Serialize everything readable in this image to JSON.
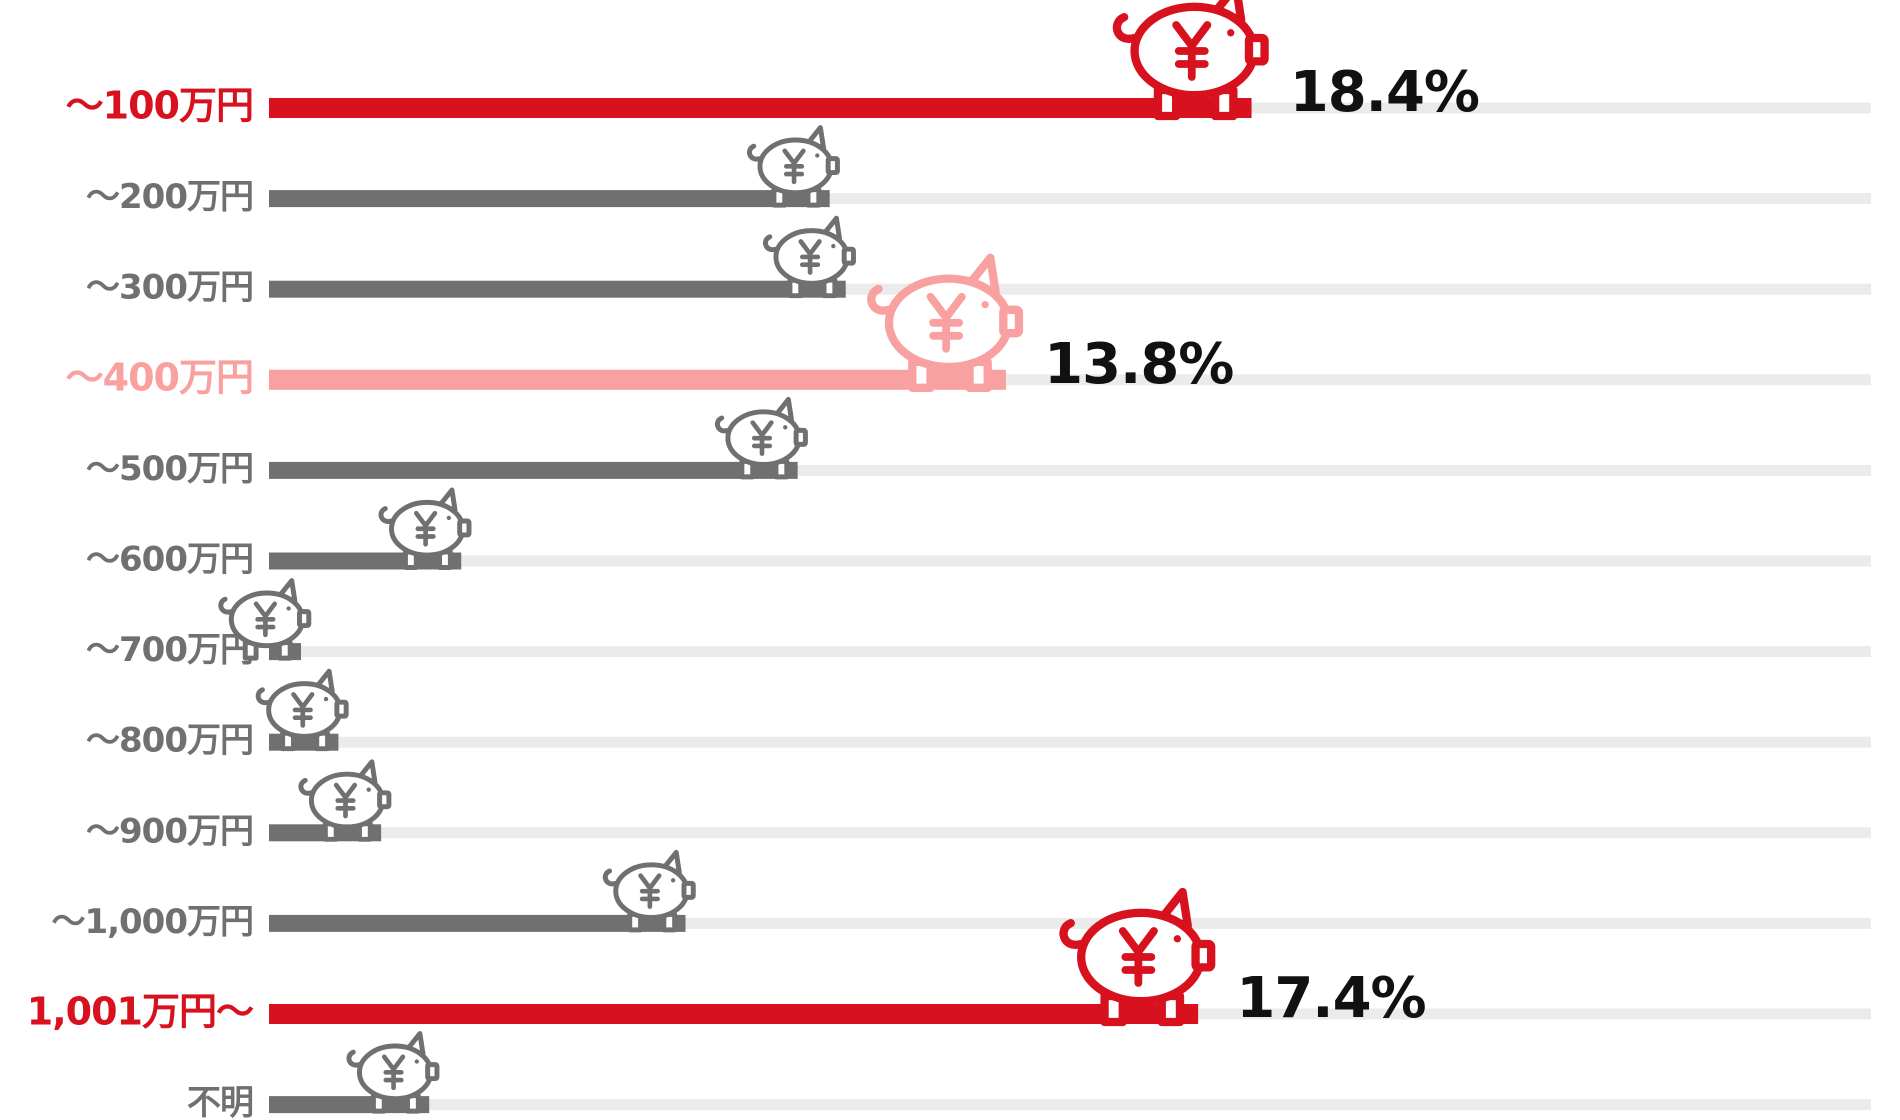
{
  "chart_data": {
    "type": "bar",
    "orientation": "horizontal",
    "categories": [
      "〜100万円",
      "〜200万円",
      "〜300万円",
      "〜400万円",
      "〜500万円",
      "〜600万円",
      "〜700万円",
      "〜800万円",
      "〜900万円",
      "〜1,000万円",
      "1,001万円〜",
      "不明"
    ],
    "values": [
      18.4,
      10.5,
      10.8,
      13.8,
      9.9,
      3.6,
      0.6,
      1.3,
      2.1,
      7.8,
      17.4,
      3.0
    ],
    "value_labels": [
      "18.4%",
      null,
      null,
      "13.8%",
      null,
      null,
      null,
      null,
      null,
      null,
      "17.4%",
      null
    ],
    "colors": [
      "#d7111e",
      "#707070",
      "#707070",
      "#f9a0a0",
      "#707070",
      "#707070",
      "#707070",
      "#707070",
      "#707070",
      "#707070",
      "#d7111e",
      "#707070"
    ],
    "xlim": [
      0,
      30
    ]
  }
}
